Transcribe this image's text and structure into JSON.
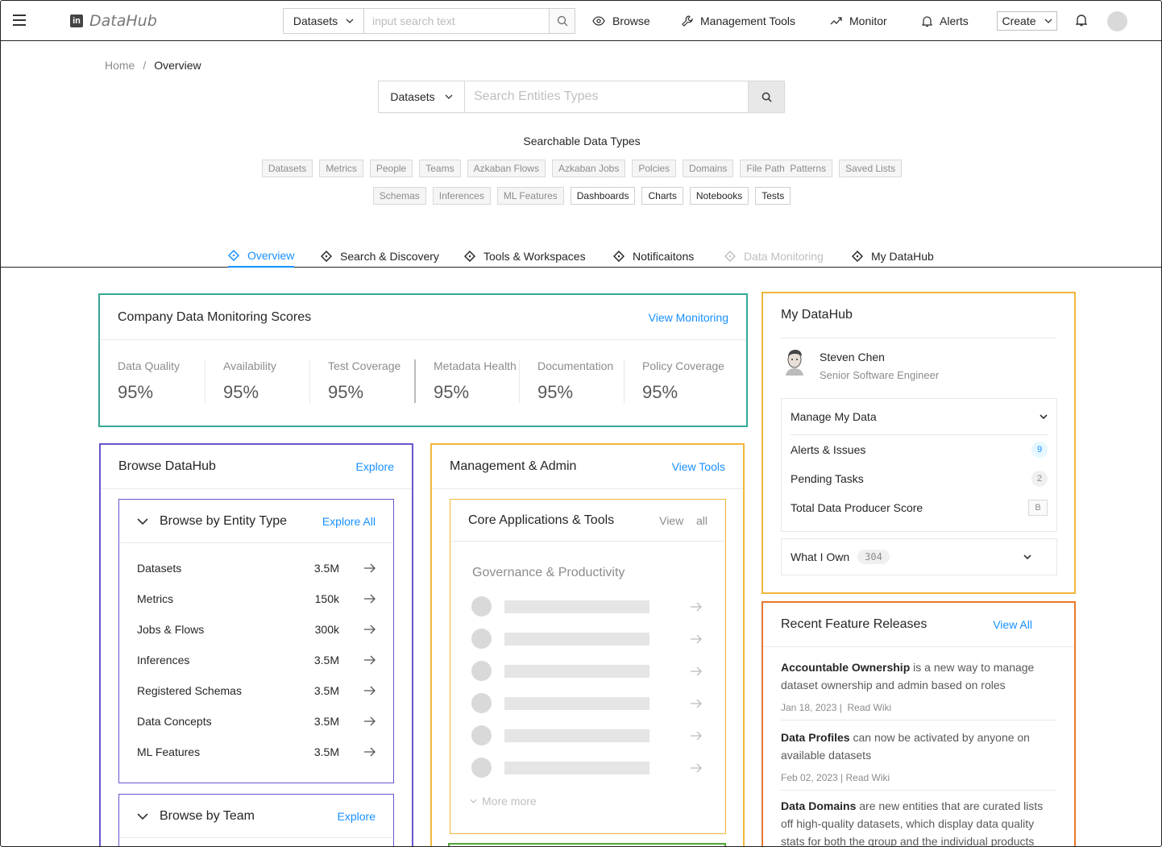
{
  "topbar": {
    "logo_text": "DataHub",
    "search": {
      "type": "Datasets",
      "placeholder": "input search text"
    },
    "nav": {
      "browse": "Browse",
      "management": "Management Tools",
      "monitor": "Monitor",
      "alerts": "Alerts"
    },
    "create_label": "Create"
  },
  "breadcrumb": {
    "home": "Home",
    "separator": "/",
    "current": "Overview"
  },
  "main_search": {
    "type": "Datasets",
    "placeholder": "Search Entities Types"
  },
  "searchable": {
    "title": "Searchable Data Types",
    "row1": [
      "Datasets",
      "Metrics",
      "People",
      "Teams",
      "Azkaban Flows",
      "Azkaban Jobs",
      "Polcies",
      "Domains",
      "File Path  Patterns",
      "Saved Lists"
    ],
    "row2": [
      "Schemas",
      "Inferences",
      "ML Features",
      "Dashboards",
      "Charts",
      "Notebooks",
      "Tests"
    ]
  },
  "tabs": {
    "overview": "Overview",
    "search": "Search & Discovery",
    "tools": "Tools & Workspaces",
    "notifications": "Notificaitons",
    "monitoring": "Data Monitoring",
    "mydatahub": "My DataHub"
  },
  "monitoring": {
    "title": "Company Data Monitoring Scores",
    "link": "View Monitoring",
    "metrics": [
      {
        "label": "Data Quality",
        "value": "95%"
      },
      {
        "label": "Availability",
        "value": "95%"
      },
      {
        "label": "Test Coverage",
        "value": "95%"
      },
      {
        "label": "Metadata Health",
        "value": "95%"
      },
      {
        "label": "Documentation",
        "value": "95%"
      },
      {
        "label": "Policy Coverage",
        "value": "95%"
      }
    ]
  },
  "mydatahub": {
    "title": "My DataHub",
    "user_name": "Steven Chen",
    "user_role": "Senior Software Engineer",
    "manage_title": "Manage My Data",
    "rows": [
      {
        "label": "Alerts & Issues",
        "badge": "9"
      },
      {
        "label": "Pending Tasks",
        "badge": "2"
      },
      {
        "label": "Total Data Producer Score",
        "badge": "B"
      }
    ],
    "own_title": "What I Own",
    "own_count": "304"
  },
  "browse": {
    "title": "Browse DataHub",
    "link": "Explore",
    "entity": {
      "title": "Browse by Entity Type",
      "link": "Explore All",
      "rows": [
        {
          "name": "Datasets",
          "count": "3.5M"
        },
        {
          "name": "Metrics",
          "count": "150k"
        },
        {
          "name": "Jobs & Flows",
          "count": "300k"
        },
        {
          "name": "Inferences",
          "count": "3.5M"
        },
        {
          "name": "Registered Schemas",
          "count": "3.5M"
        },
        {
          "name": "Data Concepts",
          "count": "3.5M"
        },
        {
          "name": "ML Features",
          "count": "3.5M"
        }
      ]
    },
    "team": {
      "title": "Browse by Team",
      "link": "Explore"
    }
  },
  "management": {
    "title": "Management & Admin",
    "link": "View Tools",
    "core": {
      "title": "Core Applications & Tools",
      "link": "View  all",
      "section": "Governance & Productivity",
      "more": "More more"
    }
  },
  "releases": {
    "title": "Recent Feature Releases",
    "link": "View All",
    "items": [
      {
        "bold": "Accountable Ownership",
        "text": " is a new way to manage dataset ownership and admin based on roles",
        "meta": "Jan 18, 2023 |  Read Wiki"
      },
      {
        "bold": "Data Profiles",
        "text": " can now be activated by anyone on available datasets",
        "meta": "Feb 02, 2023 | Read Wiki"
      },
      {
        "bold": "Data Domains",
        "text": " are new entities that are curated lists off high-quality datasets, which display data quality stats for both the group and the individual products",
        "meta": ""
      }
    ]
  },
  "colors": {
    "accent": "#1890ff",
    "monitoring_border": "#36a896",
    "mydatahub_border": "#f2b63b",
    "browse_border": "#6a55cc",
    "management_border": "#f2b63b",
    "releases_border": "#e8772e",
    "green_border": "#52a23a"
  }
}
